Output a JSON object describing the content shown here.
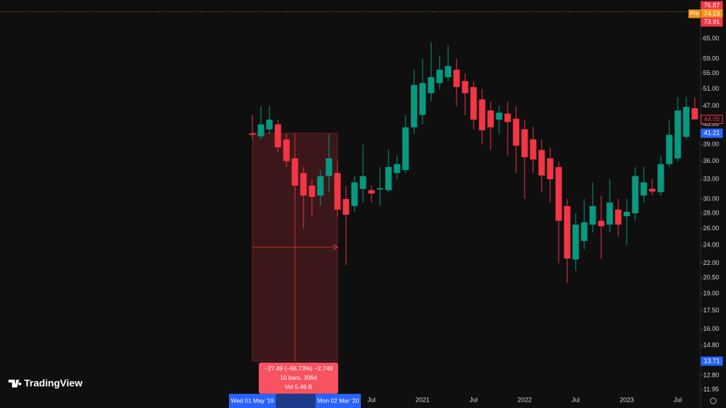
{
  "chart_data": {
    "type": "candlestick",
    "log_scale": true,
    "up_color": "#089981",
    "down_color": "#f23645",
    "x": [
      "2019-05",
      "2019-06",
      "2019-07",
      "2019-08",
      "2019-09",
      "2019-10",
      "2019-11",
      "2019-12",
      "2020-01",
      "2020-02",
      "2020-03",
      "2020-04",
      "2020-05",
      "2020-06",
      "2020-07",
      "2020-08",
      "2020-09",
      "2020-10",
      "2020-11",
      "2020-12",
      "2021-01",
      "2021-02",
      "2021-03",
      "2021-04",
      "2021-05",
      "2021-06",
      "2021-07",
      "2021-08",
      "2021-09",
      "2021-10",
      "2021-11",
      "2021-12",
      "2022-01",
      "2022-02",
      "2022-03",
      "2022-04",
      "2022-05",
      "2022-06",
      "2022-07",
      "2022-08",
      "2022-09",
      "2022-10",
      "2022-11",
      "2022-12",
      "2023-01",
      "2023-02",
      "2023-03",
      "2023-04",
      "2023-05",
      "2023-06",
      "2023-07",
      "2023-08",
      "2023-09"
    ],
    "open": [
      41.2,
      40.6,
      42,
      43,
      40,
      36.5,
      34,
      32,
      30.5,
      33.5,
      34,
      30,
      29,
      31.5,
      31.3,
      31.4,
      31.3,
      34,
      34.5,
      42.4,
      45,
      50,
      52.5,
      54,
      56,
      53,
      51.5,
      48.5,
      46,
      44,
      45.3,
      44.2,
      42,
      40,
      38,
      36.5,
      35,
      29,
      22.4,
      24.5,
      26.5,
      27,
      26.5,
      28.5,
      27.6,
      28,
      30.5,
      31.5,
      31,
      35.5,
      36.5,
      40.5,
      46.5
    ],
    "high": [
      45,
      47,
      47,
      44,
      41,
      37,
      35,
      33,
      34.5,
      41,
      36,
      32,
      33.5,
      39,
      32,
      35,
      38,
      37,
      45,
      56,
      59,
      64,
      60,
      63,
      59,
      55,
      53,
      51,
      48,
      47,
      48,
      47,
      44,
      42.5,
      40,
      38.5,
      36,
      30,
      28,
      30,
      32.5,
      30.5,
      33,
      30,
      30,
      35,
      35,
      33,
      37,
      44,
      49,
      49,
      49
    ],
    "low": [
      40,
      40,
      41,
      37.5,
      35,
      30,
      26,
      27.6,
      29,
      31,
      27.5,
      21.8,
      28.2,
      29.5,
      29.5,
      29,
      31,
      33,
      34,
      41,
      43,
      48,
      51,
      53,
      47,
      45,
      42,
      39,
      38,
      41,
      37,
      34,
      30,
      34,
      31,
      29.5,
      22,
      20,
      21.2,
      23.5,
      25.5,
      22.5,
      25.5,
      25,
      24,
      27,
      29.5,
      30.5,
      30.5,
      35,
      36,
      40,
      44
    ],
    "close": [
      40.9,
      43,
      44,
      38.5,
      36,
      32,
      30.5,
      30.3,
      33.5,
      36.5,
      28.5,
      27.8,
      32.5,
      33.5,
      30.8,
      31.6,
      35,
      35.5,
      42.4,
      52,
      52.5,
      54,
      56,
      57,
      51.5,
      50,
      44,
      41.8,
      42.4,
      45.5,
      43.5,
      38.8,
      36.7,
      36.3,
      33.6,
      33,
      27,
      22.5,
      26.5,
      26.8,
      29,
      26.3,
      29.5,
      26.5,
      28.2,
      33.5,
      32.5,
      31.1,
      35.5,
      40.9,
      46,
      46.8,
      44.05
    ],
    "xticks": [
      {
        "value": "2020-07",
        "label": "Jul"
      },
      {
        "value": "2021-01",
        "label": "2021"
      },
      {
        "value": "2021-07",
        "label": "Jul"
      },
      {
        "value": "2022-01",
        "label": "2022"
      },
      {
        "value": "2022-07",
        "label": "Jul"
      },
      {
        "value": "2023-01",
        "label": "2023"
      },
      {
        "value": "2023-07",
        "label": "Jul"
      }
    ],
    "ylim": [
      11.75,
      78.4
    ],
    "yticks": [
      {
        "value": 65,
        "label": "65.00"
      },
      {
        "value": 59,
        "label": "59.00"
      },
      {
        "value": 55,
        "label": "55.00"
      },
      {
        "value": 51,
        "label": "51.00"
      },
      {
        "value": 47,
        "label": "47.00"
      },
      {
        "value": 43,
        "label": "43.00"
      },
      {
        "value": 39,
        "label": "39.00"
      },
      {
        "value": 36,
        "label": "36.00"
      },
      {
        "value": 33,
        "label": "33.00"
      },
      {
        "value": 30,
        "label": "30.00"
      },
      {
        "value": 28,
        "label": "28.00"
      },
      {
        "value": 26,
        "label": "26.00"
      },
      {
        "value": 24,
        "label": "24.00"
      },
      {
        "value": 22,
        "label": "22.00"
      },
      {
        "value": 20.5,
        "label": "20.50"
      },
      {
        "value": 19,
        "label": "19.00"
      },
      {
        "value": 17.5,
        "label": "17.50"
      },
      {
        "value": 16,
        "label": "16.00"
      },
      {
        "value": 14.8,
        "label": "14.80"
      },
      {
        "value": 12.8,
        "label": "12.80"
      },
      {
        "value": 11.95,
        "label": "11.95"
      }
    ],
    "top_badges": [
      {
        "value": 76.87,
        "color": "#f23645"
      },
      {
        "value": 74.13,
        "color": "#f7931a",
        "tag": "Pre"
      },
      {
        "value": 73.91,
        "color": "#f23645"
      }
    ],
    "measure": {
      "from_index": 0,
      "to_index": 10,
      "high": 41.21,
      "low": 13.71,
      "from_label": "Wed 01 May '19",
      "to_label": "Mon 02 Mar '20",
      "lines": [
        "−27.49 (−66.73%) −2,749",
        "10 bars, 306d",
        "Vol 5.49 B"
      ]
    },
    "brand": "TradingView"
  }
}
